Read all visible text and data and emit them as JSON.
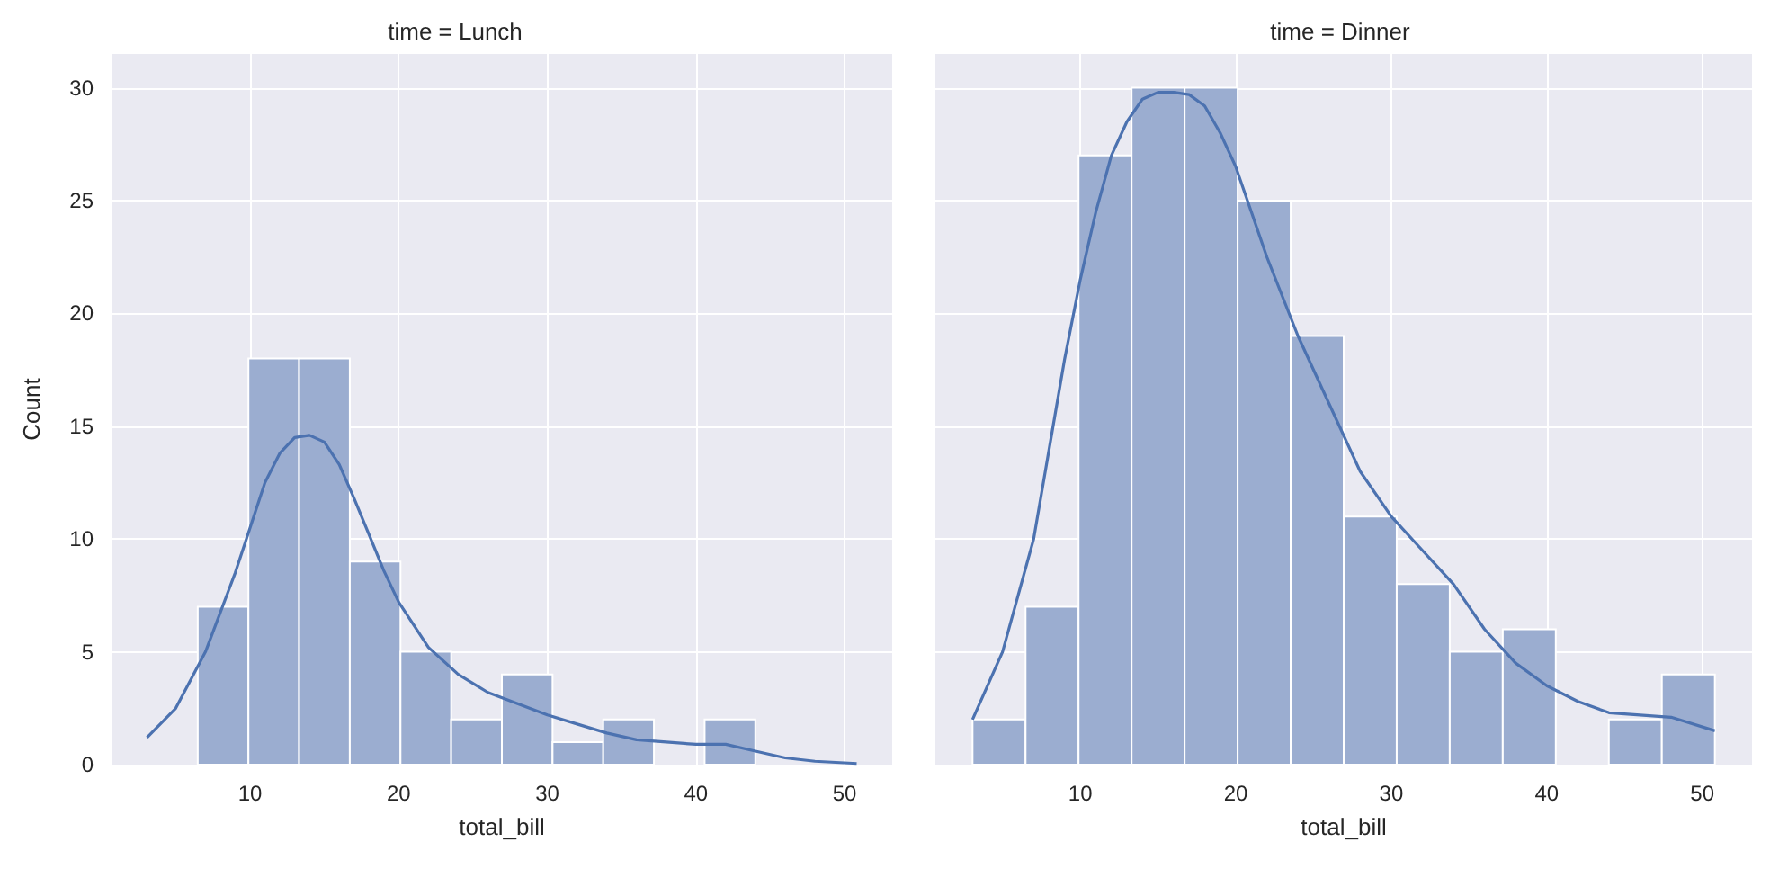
{
  "chart_data": [
    {
      "type": "histogram",
      "title": "time = Lunch",
      "xlabel": "total_bill",
      "ylabel": "Count",
      "bins": [
        3.07,
        6.48,
        9.89,
        13.3,
        16.71,
        20.12,
        23.53,
        26.94,
        30.35,
        33.76,
        37.17,
        40.58,
        43.99,
        47.4,
        50.81
      ],
      "values": [
        0,
        7,
        18,
        18,
        9,
        5,
        2,
        4,
        1,
        2,
        0,
        2,
        0,
        0
      ],
      "color": "#9badd0",
      "series": [
        {
          "type": "line",
          "color": "#4c72b0",
          "x": [
            3.07,
            5,
            7,
            9,
            10,
            11,
            12,
            13,
            14,
            15,
            16,
            17,
            18,
            19,
            20,
            22,
            24,
            26,
            28,
            30,
            32,
            34,
            36,
            38,
            40,
            42,
            44,
            46,
            48,
            50.81
          ],
          "values": [
            1.2,
            2.5,
            5,
            8.5,
            10.5,
            12.5,
            13.8,
            14.5,
            14.6,
            14.3,
            13.3,
            11.8,
            10.2,
            8.6,
            7.2,
            5.2,
            4,
            3.2,
            2.7,
            2.2,
            1.8,
            1.4,
            1.1,
            1,
            0.9,
            0.9,
            0.6,
            0.3,
            0.15,
            0.05
          ]
        }
      ],
      "xlim": [
        0.68,
        53.2
      ],
      "xticks": [
        10,
        20,
        30,
        40,
        50
      ],
      "ylim": [
        0,
        31.5
      ],
      "yticks": [
        0,
        5,
        10,
        15,
        20,
        25,
        30
      ],
      "grid": true
    },
    {
      "type": "histogram",
      "title": "time = Dinner",
      "xlabel": "total_bill",
      "bins": [
        3.07,
        6.48,
        9.89,
        13.3,
        16.71,
        20.12,
        23.53,
        26.94,
        30.35,
        33.76,
        37.17,
        40.58,
        43.99,
        47.4,
        50.81
      ],
      "values": [
        2,
        7,
        27,
        30,
        30,
        25,
        19,
        11,
        8,
        5,
        6,
        0,
        2,
        4
      ],
      "color": "#9badd0",
      "series": [
        {
          "type": "line",
          "color": "#4c72b0",
          "x": [
            3.07,
            5,
            7,
            8,
            9,
            10,
            11,
            12,
            13,
            14,
            15,
            16,
            17,
            18,
            19,
            20,
            21,
            22,
            24,
            26,
            28,
            30,
            32,
            34,
            36,
            38,
            40,
            42,
            44,
            46,
            48,
            50.81
          ],
          "values": [
            2,
            5,
            10,
            14,
            18,
            21.5,
            24.5,
            27,
            28.5,
            29.5,
            29.8,
            29.8,
            29.7,
            29.2,
            28,
            26.5,
            24.5,
            22.5,
            19,
            16,
            13,
            11,
            9.5,
            8,
            6,
            4.5,
            3.5,
            2.8,
            2.3,
            2.2,
            2.1,
            1.5
          ]
        }
      ],
      "xlim": [
        0.68,
        53.2
      ],
      "xticks": [
        10,
        20,
        30,
        40,
        50
      ],
      "ylim": [
        0,
        31.5
      ],
      "yticks": [
        0,
        5,
        10,
        15,
        20,
        25,
        30
      ],
      "grid": true,
      "tick_labels": "x"
    }
  ]
}
